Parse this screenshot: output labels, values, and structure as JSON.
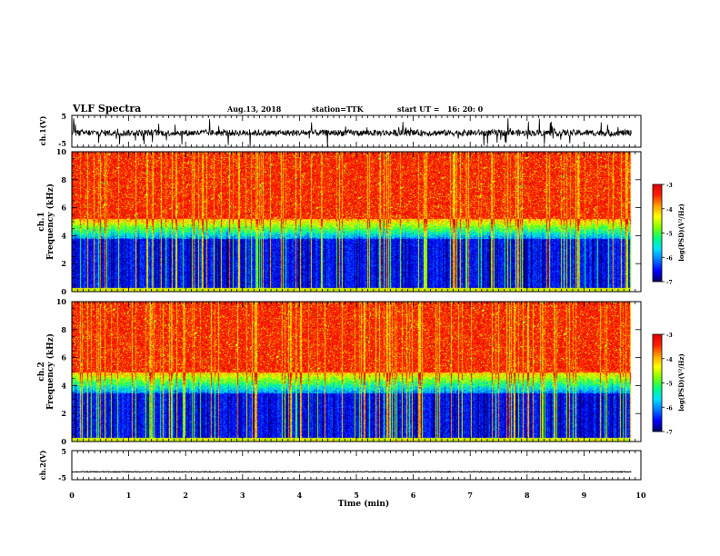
{
  "header": {
    "title": "VLF Spectra",
    "date": "Aug.13, 2018",
    "station": "station=TTK",
    "start_ut": "start UT =   16: 20: 0"
  },
  "chart_data": [
    {
      "id": "ch1-waveform",
      "type": "line",
      "ylabel": "ch.1(V)",
      "ylim": [
        -5,
        5
      ],
      "yticks": [
        "5",
        "-5"
      ],
      "baseline": -0.5,
      "color": "#000000"
    },
    {
      "id": "ch1-spectrogram",
      "type": "heatmap",
      "ylabel": "ch.1\nFrequency (kHz)",
      "ylabel_lines": [
        "ch.1",
        "Frequency (kHz)"
      ],
      "ylim": [
        0,
        10
      ],
      "yticks": [
        "0",
        "2",
        "4",
        "6",
        "8",
        "10"
      ],
      "colorbar": {
        "label": "log(PSD)(V²/Hz)",
        "range": [
          -7,
          -3
        ],
        "ticks": [
          "-3",
          "-4",
          "-5",
          "-6",
          "-7"
        ]
      },
      "bands_khz": {
        "low_cutoff": 0.3,
        "dark_top": 3.8,
        "transition_top": 5.2
      }
    },
    {
      "id": "ch2-spectrogram",
      "type": "heatmap",
      "ylabel_lines": [
        "ch.2",
        "Frequency (kHz)"
      ],
      "ylim": [
        0,
        10
      ],
      "yticks": [
        "0",
        "2",
        "4",
        "6",
        "8",
        "10"
      ],
      "colorbar": {
        "label": "log(PSD)(V²/Hz)",
        "range": [
          -7,
          -3
        ],
        "ticks": [
          "-3",
          "-4",
          "-5",
          "-6",
          "-7"
        ]
      },
      "bands_khz": {
        "low_cutoff": 0.3,
        "dark_top": 3.5,
        "transition_top": 5.0
      }
    },
    {
      "id": "ch2-waveform",
      "type": "line",
      "ylabel": "ch.2(V)",
      "ylim": [
        -5,
        5
      ],
      "yticks": [
        "5",
        "-5"
      ],
      "baseline": -2.3,
      "color": "#000000"
    }
  ],
  "xaxis": {
    "label": "Time (min)",
    "range": [
      0,
      10
    ],
    "data_end": 9.83,
    "ticks": [
      "0",
      "1",
      "2",
      "3",
      "4",
      "5",
      "6",
      "7",
      "8",
      "9",
      "10"
    ]
  },
  "colormap": [
    "#000060",
    "#0000ff",
    "#0078ff",
    "#00e0ff",
    "#00ff80",
    "#80ff00",
    "#ffff00",
    "#ffa000",
    "#ff2000",
    "#e00000"
  ]
}
